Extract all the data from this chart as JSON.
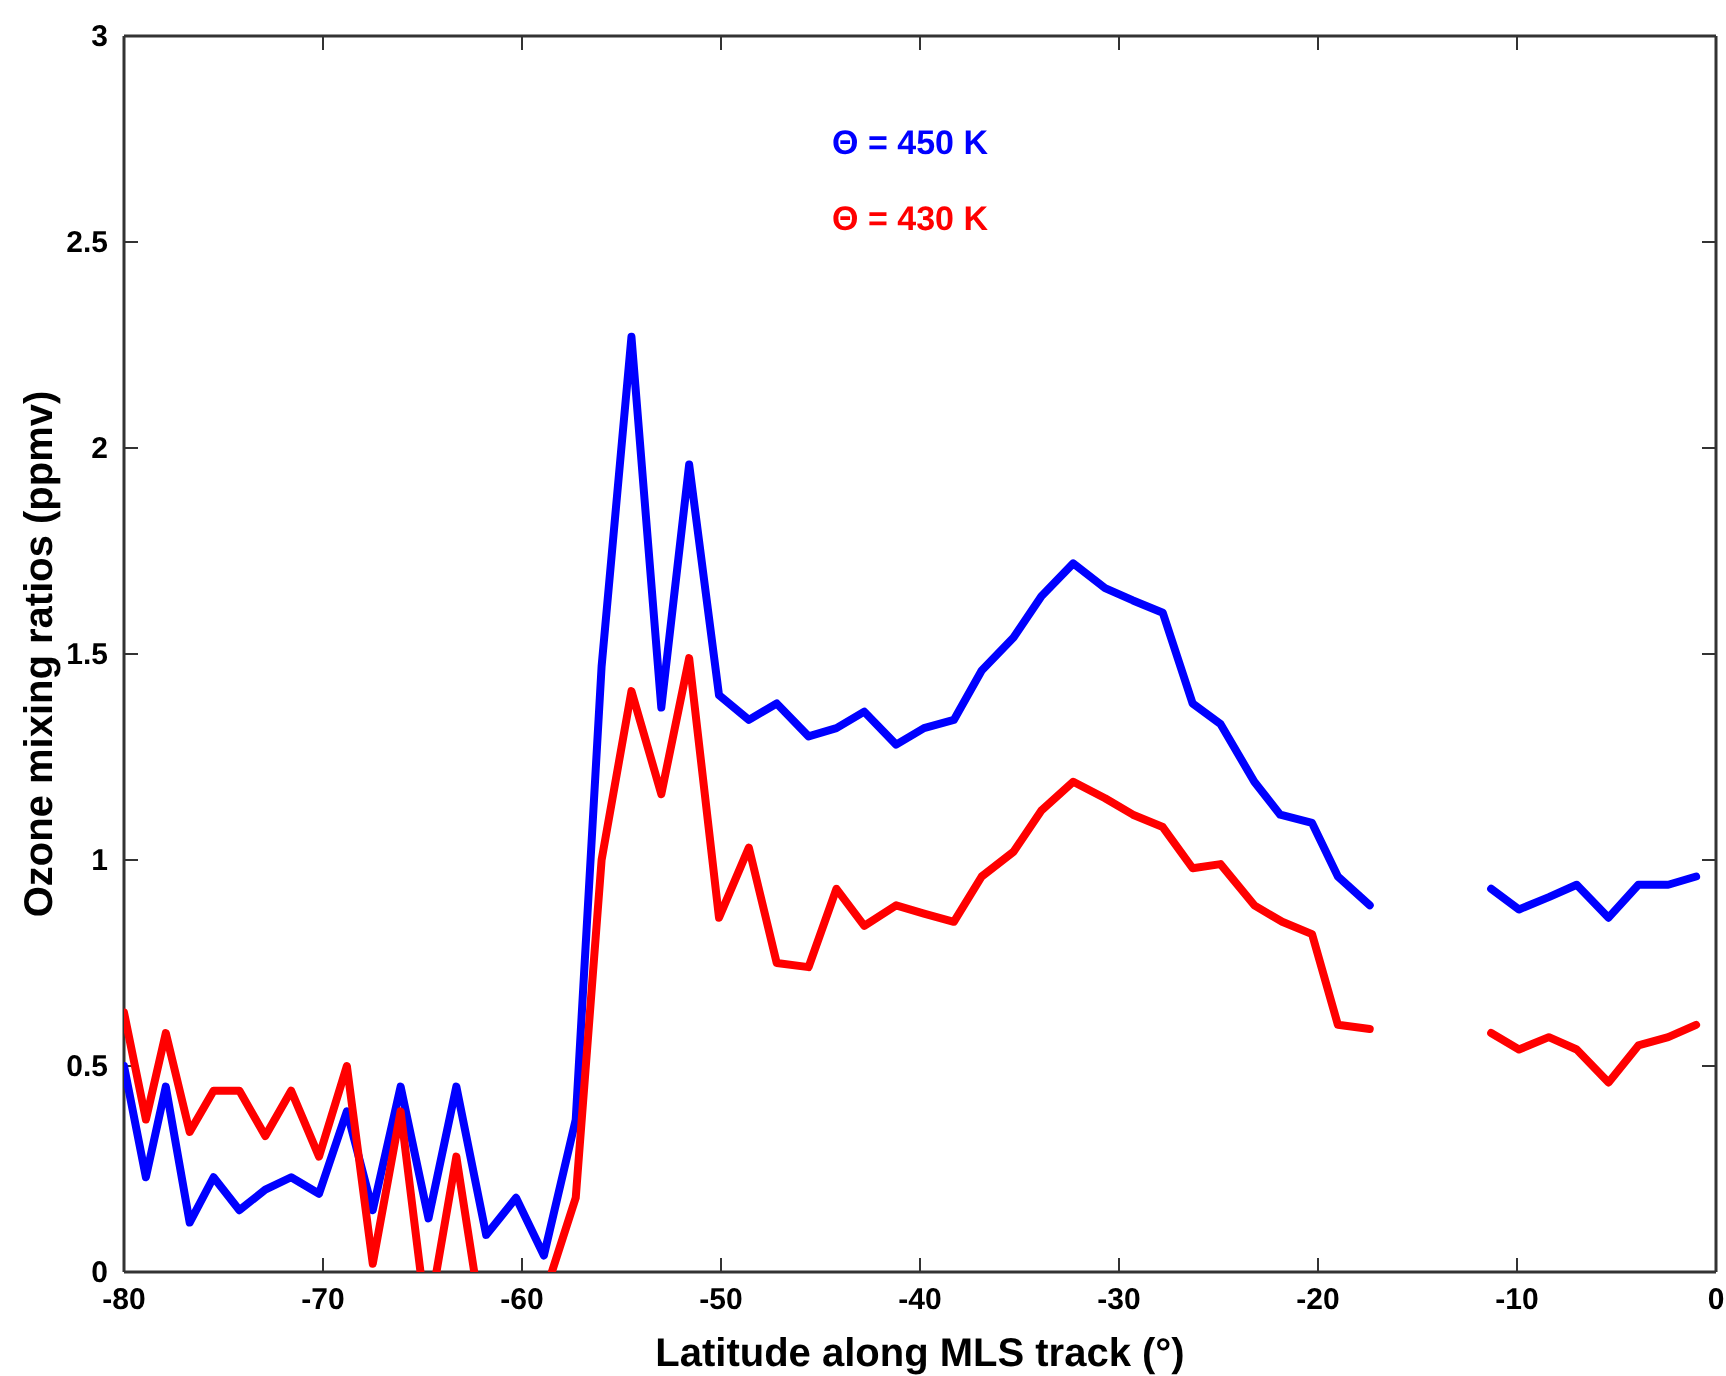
{
  "chart_data": {
    "type": "line",
    "xlabel": "Latitude along MLS track (°)",
    "ylabel": "Ozone mixing ratios (ppmv)",
    "xlim": [
      -80,
      0
    ],
    "xticks": [
      -80,
      -70,
      -60,
      -50,
      -40,
      -30,
      -20,
      -10,
      0
    ],
    "ylim": [
      0,
      3
    ],
    "yticks": [
      0,
      0.5,
      1,
      1.5,
      2,
      2.5,
      3
    ],
    "grid": false,
    "legend": "top",
    "marker": "none",
    "line_style": "solid",
    "series": [
      {
        "name": "Θ = 450 K",
        "color": "#0000ff",
        "x": [
          -80,
          -78.9,
          -77.9,
          -76.7,
          -75.5,
          -74.2,
          -72.9,
          -71.6,
          -70.2,
          -68.8,
          -67.5,
          -66.1,
          -64.7,
          -63.3,
          -61.8,
          -60.3,
          -58.9,
          -57.3,
          -56.0,
          -54.5,
          -53.0,
          -51.6,
          -50.1,
          -48.6,
          -47.2,
          -45.6,
          -44.2,
          -42.8,
          -41.2,
          -39.8,
          -38.3,
          -36.9,
          -35.3,
          -33.9,
          -32.3,
          -30.7,
          -29.3,
          -27.8,
          -26.3,
          -24.9,
          -23.2,
          -21.9,
          -20.3,
          -19.0,
          -17.4,
          -14.4,
          -11.3,
          -9.9,
          -8.4,
          -7.0,
          -5.4,
          -3.9,
          -2.4,
          -1.0
        ],
        "values": [
          0.5,
          0.23,
          0.45,
          0.12,
          0.23,
          0.15,
          0.2,
          0.23,
          0.19,
          0.39,
          0.15,
          0.45,
          0.13,
          0.45,
          0.09,
          0.18,
          0.04,
          0.37,
          1.47,
          2.27,
          1.37,
          1.96,
          1.4,
          1.34,
          1.38,
          1.3,
          1.32,
          1.36,
          1.28,
          1.32,
          1.34,
          1.46,
          1.54,
          1.64,
          1.72,
          1.66,
          1.63,
          1.6,
          1.38,
          1.33,
          1.19,
          1.11,
          1.09,
          0.96,
          0.89,
          null,
          0.93,
          0.88,
          0.91,
          0.94,
          0.86,
          0.94,
          0.94,
          0.96
        ]
      },
      {
        "name": "Θ = 430 K",
        "color": "#ff0000",
        "x": [
          -80,
          -78.9,
          -77.9,
          -76.7,
          -75.5,
          -74.2,
          -72.9,
          -71.6,
          -70.2,
          -68.8,
          -67.5,
          -66.1,
          -65.1,
          -64.7,
          -64.3,
          -63.3,
          -62.4,
          -60.4,
          -58.5,
          -57.3,
          -56.0,
          -54.5,
          -53.0,
          -51.6,
          -50.1,
          -48.6,
          -47.2,
          -45.6,
          -44.2,
          -42.8,
          -41.2,
          -39.8,
          -38.3,
          -36.9,
          -35.3,
          -33.9,
          -32.3,
          -30.7,
          -29.3,
          -27.8,
          -26.3,
          -24.9,
          -23.2,
          -21.8,
          -20.3,
          -19.0,
          -17.4,
          -14.4,
          -11.3,
          -9.9,
          -8.4,
          -7.0,
          -5.4,
          -3.9,
          -2.4,
          -1.0
        ],
        "values": [
          0.63,
          0.37,
          0.58,
          0.34,
          0.44,
          0.44,
          0.33,
          0.44,
          0.28,
          0.5,
          0.02,
          0.39,
          0,
          null,
          0,
          0.28,
          0,
          null,
          0,
          0.18,
          1.0,
          1.41,
          1.16,
          1.49,
          0.86,
          1.03,
          0.75,
          0.74,
          0.93,
          0.84,
          0.89,
          0.87,
          0.85,
          0.96,
          1.02,
          1.12,
          1.19,
          1.15,
          1.11,
          1.08,
          0.98,
          0.99,
          0.89,
          0.85,
          0.82,
          0.6,
          0.59,
          null,
          0.58,
          0.54,
          0.57,
          0.54,
          0.46,
          0.55,
          0.57,
          0.6
        ]
      }
    ]
  }
}
